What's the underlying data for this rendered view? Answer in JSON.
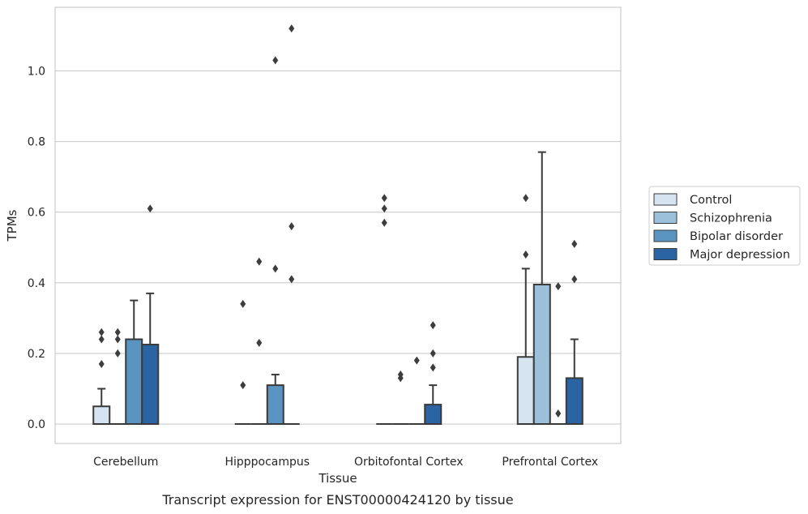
{
  "chart_data": {
    "type": "box",
    "title": "",
    "caption": "Transcript expression for ENST00000424120 by tissue",
    "xlabel": "Tissue",
    "ylabel": "TPMs",
    "ylim": [
      -0.055,
      1.18
    ],
    "yticks": [
      0.0,
      0.2,
      0.4,
      0.6,
      0.8,
      1.0
    ],
    "ytick_labels": [
      "0.0",
      "0.2",
      "0.4",
      "0.6",
      "0.8",
      "1.0"
    ],
    "grid": true,
    "legend_position": "right",
    "categories": [
      "Cerebellum",
      "Hipppocampus",
      "Orbitofontal Cortex",
      "Prefrontal Cortex"
    ],
    "series": [
      {
        "name": "Control",
        "color": "#d6e4f2",
        "boxes": [
          {
            "q1": 0.0,
            "median": 0.0,
            "q3": 0.05,
            "whisker_low": 0.0,
            "whisker_high": 0.1,
            "outliers": [
              0.17,
              0.24,
              0.26
            ]
          },
          {
            "q1": 0.0,
            "median": 0.0,
            "q3": 0.0,
            "whisker_low": 0.0,
            "whisker_high": 0.0,
            "outliers": [
              0.11,
              0.34
            ]
          },
          {
            "q1": 0.0,
            "median": 0.0,
            "q3": 0.0,
            "whisker_low": 0.0,
            "whisker_high": 0.0,
            "outliers": [
              0.57,
              0.61,
              0.64
            ]
          },
          {
            "q1": 0.0,
            "median": 0.0,
            "q3": 0.19,
            "whisker_low": 0.0,
            "whisker_high": 0.44,
            "outliers": [
              0.48,
              0.64
            ]
          }
        ]
      },
      {
        "name": "Schizophrenia",
        "color": "#9dc0da",
        "boxes": [
          {
            "q1": 0.0,
            "median": 0.0,
            "q3": 0.0,
            "whisker_low": 0.0,
            "whisker_high": 0.0,
            "outliers": [
              0.2,
              0.24,
              0.26
            ]
          },
          {
            "q1": 0.0,
            "median": 0.0,
            "q3": 0.0,
            "whisker_low": 0.0,
            "whisker_high": 0.0,
            "outliers": [
              0.23,
              0.46
            ]
          },
          {
            "q1": 0.0,
            "median": 0.0,
            "q3": 0.0,
            "whisker_low": 0.0,
            "whisker_high": 0.0,
            "outliers": [
              0.13,
              0.14
            ]
          },
          {
            "q1": 0.0,
            "median": 0.0,
            "q3": 0.395,
            "whisker_low": 0.0,
            "whisker_high": 0.77,
            "outliers": []
          }
        ]
      },
      {
        "name": "Bipolar disorder",
        "color": "#5a94c0",
        "boxes": [
          {
            "q1": 0.0,
            "median": 0.0,
            "q3": 0.24,
            "whisker_low": 0.0,
            "whisker_high": 0.35,
            "outliers": []
          },
          {
            "q1": 0.0,
            "median": 0.0,
            "q3": 0.11,
            "whisker_low": 0.0,
            "whisker_high": 0.14,
            "outliers": [
              0.44,
              1.03
            ]
          },
          {
            "q1": 0.0,
            "median": 0.0,
            "q3": 0.0,
            "whisker_low": 0.0,
            "whisker_high": 0.0,
            "outliers": [
              0.18
            ]
          },
          {
            "q1": 0.0,
            "median": 0.0,
            "q3": 0.0,
            "whisker_low": 0.0,
            "whisker_high": 0.0,
            "outliers": [
              0.03,
              0.39
            ]
          }
        ]
      },
      {
        "name": "Major depression",
        "color": "#2b64a2",
        "boxes": [
          {
            "q1": 0.0,
            "median": 0.0,
            "q3": 0.225,
            "whisker_low": 0.0,
            "whisker_high": 0.37,
            "outliers": [
              0.61
            ]
          },
          {
            "q1": 0.0,
            "median": 0.0,
            "q3": 0.0,
            "whisker_low": 0.0,
            "whisker_high": 0.0,
            "outliers": [
              0.41,
              0.56,
              1.12
            ]
          },
          {
            "q1": 0.0,
            "median": 0.0,
            "q3": 0.055,
            "whisker_low": 0.0,
            "whisker_high": 0.11,
            "outliers": [
              0.16,
              0.2,
              0.28
            ]
          },
          {
            "q1": 0.0,
            "median": 0.0,
            "q3": 0.13,
            "whisker_low": 0.0,
            "whisker_high": 0.24,
            "outliers": [
              0.41,
              0.51
            ]
          }
        ]
      }
    ]
  }
}
